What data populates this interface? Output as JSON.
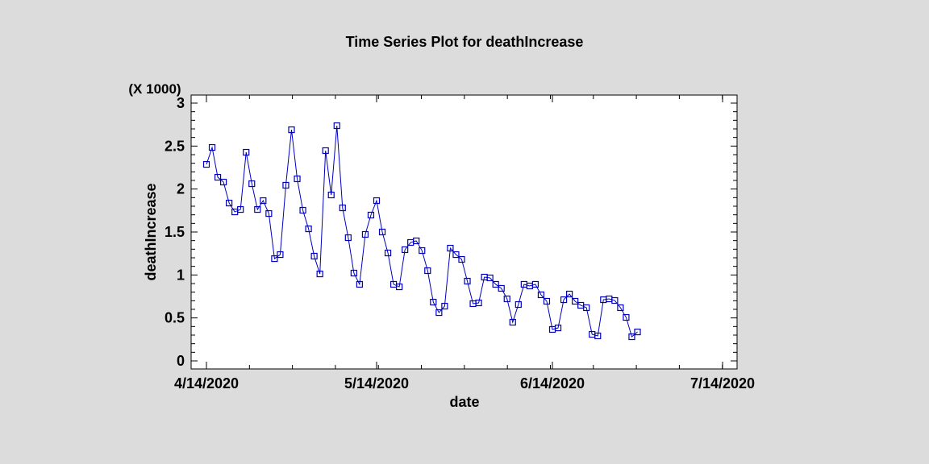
{
  "chart_data": {
    "type": "line",
    "title": "Time Series Plot for deathIncrease",
    "xlabel": "date",
    "ylabel": "deathIncrease",
    "y_multiplier_label": "(X 1000)",
    "ylim": [
      0,
      3000
    ],
    "y_ticks": [
      0,
      500,
      1000,
      1500,
      2000,
      2500,
      3000
    ],
    "y_tick_labels": [
      "0",
      "0.5",
      "1",
      "1.5",
      "2",
      "2.5",
      "3"
    ],
    "x_range": [
      "4/14/2020",
      "7/14/2020"
    ],
    "x_tick_labels": [
      "4/14/2020",
      "5/14/2020",
      "6/14/2020",
      "7/14/2020"
    ],
    "x_start": "4/14/2020",
    "marker": "square",
    "color": "#0000c0",
    "series": [
      {
        "name": "deathIncrease",
        "values": [
          2287,
          2484,
          2137,
          2081,
          1837,
          1734,
          1762,
          2428,
          2062,
          1762,
          1865,
          1715,
          1190,
          1237,
          2044,
          2690,
          2119,
          1753,
          1537,
          1219,
          1012,
          2447,
          1931,
          2737,
          1781,
          1434,
          1022,
          891,
          1472,
          1697,
          1865,
          1500,
          1256,
          891,
          862,
          1294,
          1378,
          1397,
          1284,
          1050,
          684,
          562,
          637,
          1312,
          1237,
          1181,
          928,
          666,
          675,
          975,
          966,
          891,
          844,
          722,
          450,
          656,
          891,
          872,
          891,
          769,
          694,
          366,
          384,
          712,
          778,
          694,
          647,
          619,
          309,
          291,
          712,
          722,
          703,
          619,
          506,
          281,
          337
        ]
      }
    ]
  }
}
